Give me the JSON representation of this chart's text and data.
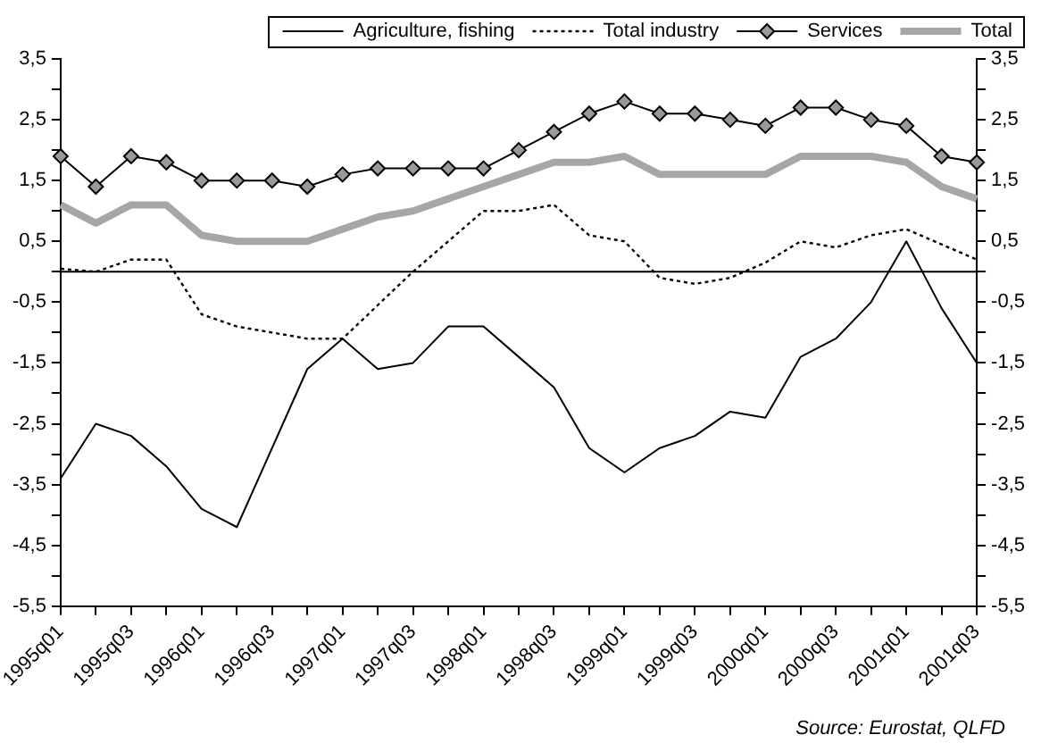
{
  "chart_data": {
    "type": "line",
    "categories": [
      "1995q01",
      null,
      "1995q03",
      null,
      "1996q01",
      null,
      "1996q03",
      null,
      "1997q01",
      null,
      "1997q03",
      null,
      "1998q01",
      null,
      "1998q03",
      null,
      "1999q01",
      null,
      "1999q03",
      null,
      "2000q01",
      null,
      "2000q03",
      null,
      "2001q01",
      null,
      "2001q03"
    ],
    "series": [
      {
        "name": "Agriculture, fishing",
        "color": "#000000",
        "marker": "none",
        "line_style": "solid",
        "values": [
          -3.4,
          -2.5,
          -2.7,
          -3.2,
          -3.9,
          -4.2,
          -2.9,
          -1.6,
          -1.1,
          -1.6,
          -1.5,
          -0.9,
          -0.9,
          -1.4,
          -1.9,
          -2.9,
          -3.3,
          -2.9,
          -2.7,
          -2.3,
          -2.4,
          -1.4,
          -1.1,
          -0.5,
          0.5,
          -0.6,
          -1.5
        ]
      },
      {
        "name": "Total industry",
        "color": "#000000",
        "marker": "none",
        "line_style": "dotted",
        "values": [
          0.05,
          0,
          0.2,
          0.2,
          -0.7,
          -0.9,
          -1,
          -1.1,
          -1.1,
          -0.55,
          0,
          0.5,
          1,
          1,
          1.1,
          0.6,
          0.5,
          -0.1,
          -0.2,
          -0.1,
          0.15,
          0.5,
          0.4,
          0.6,
          0.7,
          0.45,
          0.2
        ]
      },
      {
        "name": "Services",
        "color": "#000000",
        "marker": "diamond",
        "line_style": "solid",
        "values": [
          1.9,
          1.4,
          1.9,
          1.8,
          1.5,
          1.5,
          1.5,
          1.4,
          1.6,
          1.7,
          1.7,
          1.7,
          1.7,
          2,
          2.3,
          2.6,
          2.8,
          2.6,
          2.6,
          2.5,
          2.4,
          2.7,
          2.7,
          2.5,
          2.4,
          1.9,
          1.8
        ]
      },
      {
        "name": "Total",
        "color": "#a6a6a6",
        "marker": "none",
        "line_style": "solid",
        "values": [
          1.1,
          0.8,
          1.1,
          1.1,
          0.6,
          0.5,
          0.5,
          0.5,
          0.7,
          0.9,
          1,
          1.2,
          1.4,
          1.6,
          1.8,
          1.8,
          1.9,
          1.6,
          1.6,
          1.6,
          1.6,
          1.9,
          1.9,
          1.9,
          1.8,
          1.4,
          1.2
        ]
      }
    ],
    "ylim": [
      -5.5,
      3.5
    ],
    "yticks": [
      {
        "value": -5.5,
        "label": "-5,5"
      },
      {
        "value": -5,
        "label": null
      },
      {
        "value": -4.5,
        "label": "-4,5"
      },
      {
        "value": -4,
        "label": null
      },
      {
        "value": -3.5,
        "label": "-3,5"
      },
      {
        "value": -3,
        "label": null
      },
      {
        "value": -2.5,
        "label": "-2,5"
      },
      {
        "value": -2,
        "label": null
      },
      {
        "value": -1.5,
        "label": "-1,5"
      },
      {
        "value": -1,
        "label": null
      },
      {
        "value": -0.5,
        "label": "-0,5"
      },
      {
        "value": 0,
        "label": null
      },
      {
        "value": 0.5,
        "label": "0,5"
      },
      {
        "value": 1,
        "label": null
      },
      {
        "value": 1.5,
        "label": "1,5"
      },
      {
        "value": 2,
        "label": null
      },
      {
        "value": 2.5,
        "label": "2,5"
      },
      {
        "value": 3,
        "label": null
      },
      {
        "value": 3.5,
        "label": "3,5"
      }
    ],
    "y2lim": [
      -5.5,
      3.5
    ],
    "y2ticks": [
      {
        "value": -5.5,
        "label": "-5,5"
      },
      {
        "value": -5,
        "label": null
      },
      {
        "value": -4.5,
        "label": "-4,5"
      },
      {
        "value": -4,
        "label": null
      },
      {
        "value": -3.5,
        "label": "-3,5"
      },
      {
        "value": -3,
        "label": null
      },
      {
        "value": -2.5,
        "label": "-2,5"
      },
      {
        "value": -2,
        "label": null
      },
      {
        "value": -1.5,
        "label": "-1,5"
      },
      {
        "value": -1,
        "label": null
      },
      {
        "value": -0.5,
        "label": "-0,5"
      },
      {
        "value": 0,
        "label": null
      },
      {
        "value": 0.5,
        "label": "0,5"
      },
      {
        "value": 1,
        "label": null
      },
      {
        "value": 1.5,
        "label": "1,5"
      },
      {
        "value": 2,
        "label": null
      },
      {
        "value": 2.5,
        "label": "2,5"
      },
      {
        "value": 3,
        "label": null
      },
      {
        "value": 3.5,
        "label": "3,5"
      }
    ],
    "ref_lines": [
      {
        "axis": "y",
        "value": 0,
        "color": "#000000"
      }
    ],
    "annotations": [
      "Source: Eurostat, QLFD"
    ],
    "grid": false,
    "legend": "top"
  }
}
